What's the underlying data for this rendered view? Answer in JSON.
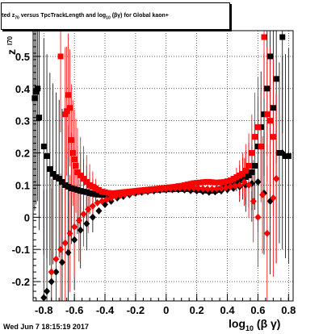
{
  "title": {
    "prefix": "itted",
    "symbol": "z",
    "symbol_sub": "70",
    "middle": "versus TpcTrackLength and log",
    "log_sub": "10",
    "suffix": "(βγ) for Global kaon+"
  },
  "x_label": {
    "main": "log",
    "sub": "10",
    "tail": "(β γ)"
  },
  "y_label": {
    "main": "z",
    "sub": "I70"
  },
  "timestamp": "Wed Jun  7 18:15:19 2017",
  "colors": {
    "series_black": "#000000",
    "series_red": "#ff0000",
    "grid": "#000000"
  },
  "chart_data": {
    "type": "scatter",
    "xlim": [
      -0.87,
      0.83
    ],
    "ylim": [
      -0.26,
      0.58
    ],
    "x_ticks": [
      "-0.8",
      "-0.6",
      "-0.4",
      "-0.2",
      "0",
      "0.2",
      "0.4",
      "0.6",
      "0.8"
    ],
    "x_tick_values": [
      -0.8,
      -0.6,
      -0.4,
      -0.2,
      0,
      0.2,
      0.4,
      0.6,
      0.8
    ],
    "y_ticks": [
      "-0.2",
      "-0.1",
      "0",
      "0.1",
      "0.2",
      "0.3",
      "0.4",
      "0.5"
    ],
    "y_tick_values": [
      -0.2,
      -0.1,
      0,
      0.1,
      0.2,
      0.3,
      0.4,
      0.5
    ],
    "grid": true,
    "series": [
      {
        "color": "black",
        "marker": "square",
        "points": [
          [
            -0.86,
            0.37
          ],
          [
            -0.85,
            0.39
          ],
          [
            -0.84,
            0.4
          ],
          [
            -0.83,
            0.31
          ],
          [
            -0.8,
            0.22
          ],
          [
            -0.78,
            0.19
          ],
          [
            -0.76,
            0.15
          ],
          [
            -0.74,
            0.135
          ],
          [
            -0.72,
            0.125
          ],
          [
            -0.7,
            0.12
          ],
          [
            -0.68,
            0.11
          ],
          [
            -0.66,
            0.1
          ],
          [
            -0.64,
            0.095
          ],
          [
            -0.62,
            0.09
          ],
          [
            -0.6,
            0.088
          ],
          [
            -0.58,
            0.085
          ],
          [
            -0.56,
            0.082
          ],
          [
            -0.54,
            0.08
          ],
          [
            -0.52,
            0.078
          ],
          [
            -0.5,
            0.075
          ],
          [
            -0.48,
            0.073
          ],
          [
            -0.46,
            0.071
          ],
          [
            -0.44,
            0.07
          ],
          [
            -0.42,
            0.069
          ],
          [
            -0.4,
            0.069
          ],
          [
            -0.38,
            0.07
          ],
          [
            -0.36,
            0.071
          ],
          [
            -0.34,
            0.072
          ],
          [
            -0.32,
            0.073
          ],
          [
            -0.3,
            0.074
          ],
          [
            -0.28,
            0.075
          ],
          [
            -0.26,
            0.076
          ],
          [
            -0.24,
            0.077
          ],
          [
            -0.22,
            0.078
          ],
          [
            -0.2,
            0.079
          ],
          [
            -0.18,
            0.08
          ],
          [
            -0.16,
            0.081
          ],
          [
            -0.14,
            0.082
          ],
          [
            -0.12,
            0.083
          ],
          [
            -0.1,
            0.084
          ],
          [
            -0.08,
            0.085
          ],
          [
            -0.06,
            0.085
          ],
          [
            -0.04,
            0.086
          ],
          [
            -0.02,
            0.086
          ],
          [
            0.0,
            0.087
          ],
          [
            0.02,
            0.087
          ],
          [
            0.04,
            0.087
          ],
          [
            0.06,
            0.088
          ],
          [
            0.08,
            0.088
          ],
          [
            0.1,
            0.088
          ],
          [
            0.12,
            0.088
          ],
          [
            0.14,
            0.088
          ],
          [
            0.16,
            0.087
          ],
          [
            0.18,
            0.087
          ],
          [
            0.2,
            0.086
          ],
          [
            0.22,
            0.085
          ],
          [
            0.24,
            0.084
          ],
          [
            0.26,
            0.083
          ],
          [
            0.28,
            0.082
          ],
          [
            0.3,
            0.082
          ],
          [
            0.32,
            0.083
          ],
          [
            0.34,
            0.085
          ],
          [
            0.36,
            0.088
          ],
          [
            0.38,
            0.092
          ],
          [
            0.4,
            0.097
          ],
          [
            0.42,
            0.1
          ],
          [
            0.44,
            0.105
          ],
          [
            0.46,
            0.11
          ],
          [
            0.48,
            0.115
          ],
          [
            0.5,
            0.12
          ],
          [
            0.52,
            0.125
          ],
          [
            0.54,
            0.13
          ],
          [
            0.56,
            0.14
          ],
          [
            0.58,
            0.16
          ],
          [
            0.6,
            0.22
          ],
          [
            0.62,
            0.28
          ],
          [
            0.64,
            0.32
          ],
          [
            0.66,
            0.4
          ],
          [
            0.68,
            0.5
          ],
          [
            0.7,
            0.34
          ],
          [
            0.72,
            0.43
          ],
          [
            0.74,
            0.2
          ],
          [
            0.76,
            0.56
          ],
          [
            0.78,
            0.19
          ],
          [
            0.8,
            0.19
          ]
        ]
      },
      {
        "color": "black",
        "marker": "diamond",
        "points": [
          [
            -0.8,
            -0.25
          ],
          [
            -0.78,
            -0.23
          ],
          [
            -0.75,
            -0.2
          ],
          [
            -0.72,
            -0.17
          ],
          [
            -0.68,
            -0.14
          ],
          [
            -0.64,
            -0.11
          ],
          [
            -0.6,
            -0.07
          ],
          [
            -0.56,
            -0.04
          ],
          [
            -0.52,
            -0.02
          ],
          [
            -0.48,
            0.0
          ],
          [
            -0.44,
            0.02
          ],
          [
            -0.4,
            0.04
          ],
          [
            -0.36,
            0.05
          ],
          [
            -0.32,
            0.06
          ],
          [
            -0.28,
            0.065
          ],
          [
            -0.24,
            0.07
          ],
          [
            -0.2,
            0.075
          ],
          [
            -0.16,
            0.078
          ],
          [
            -0.12,
            0.08
          ],
          [
            -0.08,
            0.082
          ],
          [
            -0.04,
            0.084
          ],
          [
            0.0,
            0.085
          ],
          [
            0.04,
            0.086
          ],
          [
            0.08,
            0.086
          ],
          [
            0.12,
            0.085
          ],
          [
            0.16,
            0.083
          ],
          [
            0.2,
            0.082
          ],
          [
            0.24,
            0.08
          ],
          [
            0.28,
            0.078
          ],
          [
            0.32,
            0.079
          ],
          [
            0.36,
            0.082
          ],
          [
            0.4,
            0.086
          ],
          [
            0.44,
            0.09
          ],
          [
            0.48,
            0.095
          ],
          [
            0.52,
            0.1
          ],
          [
            0.56,
            0.105
          ],
          [
            0.6,
            0.11
          ],
          [
            0.64,
            0.075
          ],
          [
            0.68,
            0.05
          ],
          [
            0.72,
            0.12
          ],
          [
            0.76,
            0.2
          ]
        ]
      },
      {
        "color": "red",
        "marker": "square",
        "points": [
          [
            -0.69,
            0.5
          ],
          [
            -0.66,
            0.32
          ],
          [
            -0.65,
            0.33
          ],
          [
            -0.64,
            0.38
          ],
          [
            -0.63,
            0.34
          ],
          [
            -0.62,
            0.24
          ],
          [
            -0.61,
            0.2
          ],
          [
            -0.6,
            0.18
          ],
          [
            -0.59,
            0.16
          ],
          [
            -0.58,
            0.14
          ],
          [
            -0.56,
            0.13
          ],
          [
            -0.54,
            0.12
          ],
          [
            -0.52,
            0.11
          ],
          [
            -0.5,
            0.1
          ],
          [
            -0.48,
            0.095
          ],
          [
            -0.46,
            0.09
          ],
          [
            -0.44,
            0.085
          ],
          [
            -0.42,
            0.08
          ],
          [
            -0.4,
            0.078
          ],
          [
            -0.38,
            0.076
          ],
          [
            -0.36,
            0.075
          ],
          [
            -0.34,
            0.075
          ],
          [
            -0.32,
            0.076
          ],
          [
            -0.3,
            0.077
          ],
          [
            -0.28,
            0.078
          ],
          [
            -0.26,
            0.079
          ],
          [
            -0.24,
            0.08
          ],
          [
            -0.22,
            0.081
          ],
          [
            -0.2,
            0.082
          ],
          [
            -0.18,
            0.083
          ],
          [
            -0.16,
            0.084
          ],
          [
            -0.14,
            0.085
          ],
          [
            -0.12,
            0.086
          ],
          [
            -0.1,
            0.087
          ],
          [
            -0.08,
            0.088
          ],
          [
            -0.06,
            0.089
          ],
          [
            -0.04,
            0.09
          ],
          [
            -0.02,
            0.091
          ],
          [
            0.0,
            0.092
          ],
          [
            0.02,
            0.093
          ],
          [
            0.04,
            0.094
          ],
          [
            0.06,
            0.095
          ],
          [
            0.08,
            0.097
          ],
          [
            0.1,
            0.098
          ],
          [
            0.12,
            0.1
          ],
          [
            0.14,
            0.102
          ],
          [
            0.16,
            0.104
          ],
          [
            0.18,
            0.106
          ],
          [
            0.2,
            0.107
          ],
          [
            0.22,
            0.108
          ],
          [
            0.24,
            0.109
          ],
          [
            0.26,
            0.11
          ],
          [
            0.28,
            0.11
          ],
          [
            0.3,
            0.109
          ],
          [
            0.32,
            0.108
          ],
          [
            0.34,
            0.108
          ],
          [
            0.36,
            0.109
          ],
          [
            0.38,
            0.11
          ],
          [
            0.4,
            0.112
          ],
          [
            0.42,
            0.115
          ],
          [
            0.44,
            0.12
          ],
          [
            0.46,
            0.125
          ],
          [
            0.48,
            0.13
          ],
          [
            0.5,
            0.135
          ],
          [
            0.52,
            0.145
          ],
          [
            0.54,
            0.16
          ],
          [
            0.56,
            0.2
          ],
          [
            0.58,
            0.25
          ],
          [
            0.6,
            0.28
          ],
          [
            0.62,
            0.22
          ],
          [
            0.64,
            0.56
          ],
          [
            0.66,
            0.32
          ],
          [
            0.68,
            0.3
          ],
          [
            0.7,
            0.25
          ]
        ]
      },
      {
        "color": "red",
        "marker": "diamond",
        "points": [
          [
            -0.75,
            -0.17
          ],
          [
            -0.72,
            -0.13
          ],
          [
            -0.69,
            -0.1
          ],
          [
            -0.66,
            -0.08
          ],
          [
            -0.63,
            -0.05
          ],
          [
            -0.6,
            -0.03
          ],
          [
            -0.57,
            -0.01
          ],
          [
            -0.54,
            0.01
          ],
          [
            -0.51,
            0.025
          ],
          [
            -0.48,
            0.035
          ],
          [
            -0.45,
            0.045
          ],
          [
            -0.42,
            0.05
          ],
          [
            -0.39,
            0.055
          ],
          [
            -0.36,
            0.06
          ],
          [
            -0.33,
            0.065
          ],
          [
            -0.3,
            0.068
          ],
          [
            -0.27,
            0.071
          ],
          [
            -0.24,
            0.074
          ],
          [
            -0.21,
            0.077
          ],
          [
            -0.18,
            0.079
          ],
          [
            -0.15,
            0.081
          ],
          [
            -0.12,
            0.083
          ],
          [
            -0.09,
            0.085
          ],
          [
            -0.06,
            0.086
          ],
          [
            -0.03,
            0.088
          ],
          [
            0.0,
            0.089
          ],
          [
            0.03,
            0.09
          ],
          [
            0.06,
            0.091
          ],
          [
            0.09,
            0.092
          ],
          [
            0.12,
            0.092
          ],
          [
            0.15,
            0.092
          ],
          [
            0.18,
            0.091
          ],
          [
            0.21,
            0.09
          ],
          [
            0.24,
            0.089
          ],
          [
            0.27,
            0.088
          ],
          [
            0.3,
            0.088
          ],
          [
            0.33,
            0.089
          ],
          [
            0.36,
            0.09
          ],
          [
            0.39,
            0.092
          ],
          [
            0.42,
            0.095
          ],
          [
            0.45,
            0.098
          ],
          [
            0.48,
            0.1
          ],
          [
            0.51,
            0.11
          ],
          [
            0.54,
            0.1
          ],
          [
            0.57,
            0.05
          ],
          [
            0.6,
            0.0
          ],
          [
            0.63,
            0.07
          ],
          [
            0.66,
            -0.05
          ],
          [
            0.7,
            0.06
          ],
          [
            0.72,
            0.12
          ]
        ]
      }
    ]
  }
}
